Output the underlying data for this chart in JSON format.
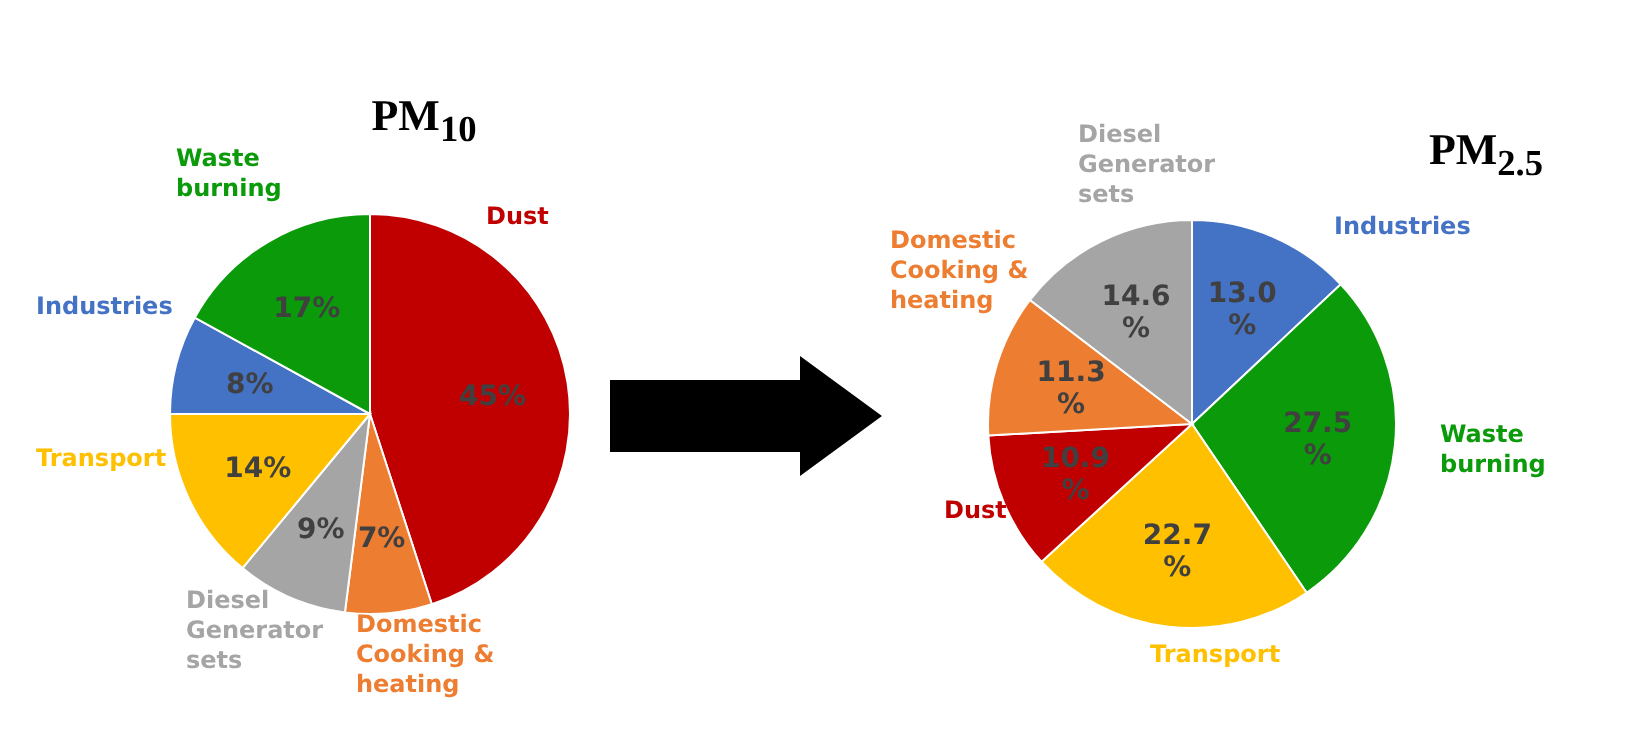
{
  "chart_data": [
    {
      "type": "pie",
      "title": "PM$_{10}$",
      "categories": [
        "Dust",
        "Domestic Cooking & heating",
        "Diesel Generator sets",
        "Transport",
        "Industries",
        "Waste burning"
      ],
      "values": [
        45,
        7,
        9,
        14,
        8,
        17
      ],
      "colors": [
        "#c00000",
        "#ed7d31",
        "#a5a5a5",
        "#ffc000",
        "#4472c4",
        "#0a9a0a"
      ],
      "value_labels": [
        "45%",
        "7%",
        "9%",
        "14%",
        "8%",
        "17%"
      ]
    },
    {
      "type": "pie",
      "title": "PM$_{2.5}$",
      "categories": [
        "Industries",
        "Waste burning",
        "Transport",
        "Dust",
        "Domestic Cooking & heating",
        "Diesel Generator sets"
      ],
      "values": [
        13.0,
        27.5,
        22.7,
        10.9,
        11.3,
        14.6
      ],
      "colors": [
        "#4472c4",
        "#0a9a0a",
        "#ffc000",
        "#c00000",
        "#ed7d31",
        "#a5a5a5"
      ],
      "value_labels": [
        "13.0 %",
        "27.5 %",
        "22.7 %",
        "10.9 %",
        "11.3 %",
        "14.6 %"
      ]
    }
  ]
}
